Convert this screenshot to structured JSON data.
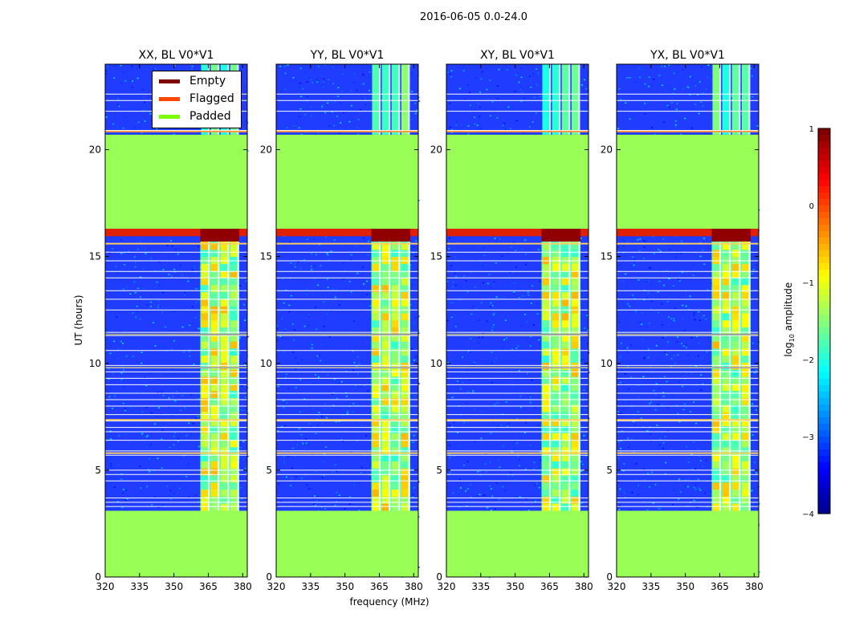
{
  "figure": {
    "suptitle": "2016-06-05 0.0-24.0",
    "ylabel": "UT (hours)",
    "xlabel": "frequency (MHz)"
  },
  "legend": {
    "items": [
      {
        "label": "Empty",
        "color": "#800000"
      },
      {
        "label": "Flagged",
        "color": "#ff4500"
      },
      {
        "label": "Padded",
        "color": "#7cfc00"
      }
    ]
  },
  "colorbar": {
    "label_main": "log",
    "label_sub": "10",
    "label_tail": " amplitude",
    "ticks": [
      "1",
      "0",
      "−1",
      "−2",
      "−3",
      "−4"
    ],
    "range": [
      -4,
      1
    ],
    "colormap": "jet"
  },
  "chart_data": [
    {
      "type": "heatmap",
      "title": "XX, BL V0*V1",
      "xlabel": "frequency (MHz)",
      "ylabel": "UT (hours)",
      "xlim": [
        320,
        382
      ],
      "ylim": [
        0,
        24
      ],
      "xticks": [
        320,
        335,
        350,
        365,
        380
      ],
      "yticks": [
        0,
        5,
        10,
        15,
        20
      ],
      "padded_ranges": [
        [
          0,
          3.1
        ],
        [
          16.3,
          20.7
        ]
      ],
      "bright_band_mhz": [
        361.5,
        378.5
      ],
      "colorbar_range": [
        -4,
        1
      ]
    },
    {
      "type": "heatmap",
      "title": "YY, BL V0*V1",
      "xlabel": "frequency (MHz)",
      "ylabel": "UT (hours)",
      "xlim": [
        320,
        382
      ],
      "ylim": [
        0,
        24
      ],
      "xticks": [
        320,
        335,
        350,
        365,
        380
      ],
      "yticks": [
        0,
        5,
        10,
        15,
        20
      ],
      "padded_ranges": [
        [
          0,
          3.1
        ],
        [
          16.3,
          20.7
        ]
      ],
      "bright_band_mhz": [
        361.5,
        378.5
      ],
      "colorbar_range": [
        -4,
        1
      ]
    },
    {
      "type": "heatmap",
      "title": "XY, BL V0*V1",
      "xlabel": "frequency (MHz)",
      "ylabel": "UT (hours)",
      "xlim": [
        320,
        382
      ],
      "ylim": [
        0,
        24
      ],
      "xticks": [
        320,
        335,
        350,
        365,
        380
      ],
      "yticks": [
        0,
        5,
        10,
        15,
        20
      ],
      "padded_ranges": [
        [
          0,
          3.1
        ],
        [
          16.3,
          20.7
        ]
      ],
      "bright_band_mhz": [
        361.5,
        378.5
      ],
      "colorbar_range": [
        -4,
        1
      ]
    },
    {
      "type": "heatmap",
      "title": "YX, BL V0*V1",
      "xlabel": "frequency (MHz)",
      "ylabel": "UT (hours)",
      "xlim": [
        320,
        382
      ],
      "ylim": [
        0,
        24
      ],
      "xticks": [
        320,
        335,
        350,
        365,
        380
      ],
      "yticks": [
        0,
        5,
        10,
        15,
        20
      ],
      "padded_ranges": [
        [
          0,
          3.1
        ],
        [
          16.3,
          20.7
        ]
      ],
      "bright_band_mhz": [
        361.5,
        378.5
      ],
      "colorbar_range": [
        -4,
        1
      ]
    }
  ]
}
